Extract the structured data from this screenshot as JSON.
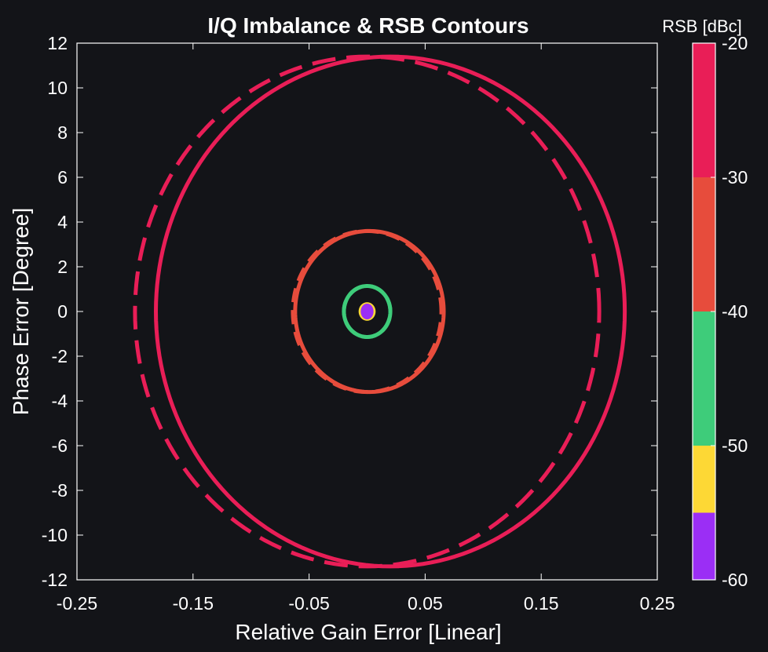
{
  "chart_data": {
    "type": "contour",
    "title": "I/Q Imbalance & RSB Contours",
    "xlabel": "Relative Gain Error [Linear]",
    "ylabel": "Phase Error [Degree]",
    "xlim": [
      -0.25,
      0.25
    ],
    "ylim": [
      -12,
      12
    ],
    "xticks": [
      -0.25,
      -0.15,
      -0.05,
      0.05,
      0.15,
      0.25
    ],
    "xtick_labels": [
      "-0.25",
      "-0.15",
      "-0.05",
      "0.05",
      "0.15",
      "0.25"
    ],
    "yticks": [
      12,
      10,
      8,
      6,
      4,
      2,
      0,
      -2,
      -4,
      -6,
      -8,
      -10,
      -12
    ],
    "ytick_labels": [
      "12",
      "10",
      "8",
      "6",
      "4",
      "2",
      "0",
      "-2",
      "-4",
      "-6",
      "-8",
      "-10",
      "-12"
    ],
    "grid": false,
    "background": "#131418",
    "axes_color": "#ffffff",
    "series": [
      {
        "rsb_db": -20,
        "style": "solid",
        "color": "#e91e57",
        "x_min": -0.182,
        "x_max": 0.222,
        "y_extent": 11.4
      },
      {
        "rsb_db": -20,
        "style": "dashed",
        "color": "#e91e57",
        "x_min": -0.2,
        "x_max": 0.2,
        "y_extent": 11.4
      },
      {
        "rsb_db": -30,
        "style": "solid",
        "color": "#e74c3c",
        "x_min": -0.062,
        "x_max": 0.066,
        "y_extent": 3.6
      },
      {
        "rsb_db": -30,
        "style": "dashed",
        "color": "#e74c3c",
        "x_min": -0.064,
        "x_max": 0.064,
        "y_extent": 3.6
      },
      {
        "rsb_db": -40,
        "style": "solid",
        "color": "#3ecc7a",
        "x_min": -0.02,
        "x_max": 0.02,
        "y_extent": 1.14
      },
      {
        "rsb_db": -40,
        "style": "dashed",
        "color": "#3ecc7a",
        "x_min": -0.02,
        "x_max": 0.02,
        "y_extent": 1.14
      },
      {
        "rsb_db": -50,
        "style": "solid",
        "color": "#fdd835",
        "x_min": -0.0063,
        "x_max": 0.0063,
        "y_extent": 0.36
      },
      {
        "rsb_db": -60,
        "style": "solid",
        "color": "#9b2ef5",
        "x_min": -0.0045,
        "x_max": 0.0045,
        "y_extent": 0.3
      }
    ],
    "colorbar": {
      "title": "RSB [dBc]",
      "limits": [
        -60,
        -20
      ],
      "tick_labels": [
        "-20",
        "-30",
        "-40",
        "-50",
        "-60"
      ],
      "bands": [
        {
          "from": -30,
          "to": -20,
          "color": "#e91e57"
        },
        {
          "from": -40,
          "to": -30,
          "color": "#e74c3c"
        },
        {
          "from": -50,
          "to": -40,
          "color": "#3ecc7a"
        },
        {
          "from": -55,
          "to": -50,
          "color": "#fdd835"
        },
        {
          "from": -60,
          "to": -55,
          "color": "#9b2ef5"
        }
      ]
    }
  }
}
